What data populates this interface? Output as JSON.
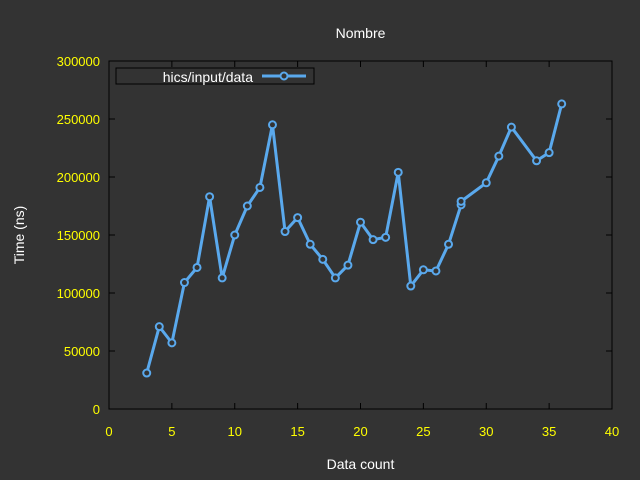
{
  "colors": {
    "background": "#333333",
    "frame": "#000000",
    "tick_label": "#ffff00",
    "text": "#ffffff",
    "series": "#5aa9ed"
  },
  "chart_data": {
    "type": "line",
    "title": "Nombre",
    "xlabel": "Data count",
    "ylabel": "Time (ns)",
    "xlim": [
      0,
      40
    ],
    "ylim": [
      0,
      300000
    ],
    "xticks": [
      0,
      5,
      10,
      15,
      20,
      25,
      30,
      35,
      40
    ],
    "yticks": [
      0,
      50000,
      100000,
      150000,
      200000,
      250000,
      300000
    ],
    "grid": false,
    "legend_position": "top-left",
    "series": [
      {
        "name": "hics/input/data",
        "color": "#5aa9ed",
        "marker": "circle",
        "points": [
          [
            3,
            31000
          ],
          [
            4,
            71000
          ],
          [
            5,
            57000
          ],
          [
            6,
            109000
          ],
          [
            7,
            122000
          ],
          [
            8,
            183000
          ],
          [
            9,
            113000
          ],
          [
            10,
            150000
          ],
          [
            11,
            175000
          ],
          [
            12,
            191000
          ],
          [
            13,
            245000
          ],
          [
            14,
            153000
          ],
          [
            15,
            165000
          ],
          [
            16,
            142000
          ],
          [
            17,
            129000
          ],
          [
            18,
            113000
          ],
          [
            19,
            124000
          ],
          [
            20,
            161000
          ],
          [
            21,
            146000
          ],
          [
            22,
            148000
          ],
          [
            23,
            204000
          ],
          [
            24,
            106000
          ],
          [
            25,
            120000
          ],
          [
            26,
            119000
          ],
          [
            27,
            142000
          ],
          [
            28,
            176000
          ],
          [
            28,
            179000
          ],
          [
            30,
            195000
          ],
          [
            31,
            218000
          ],
          [
            32,
            243000
          ],
          [
            34,
            214000
          ],
          [
            35,
            221000
          ],
          [
            36,
            263000
          ]
        ]
      }
    ]
  }
}
